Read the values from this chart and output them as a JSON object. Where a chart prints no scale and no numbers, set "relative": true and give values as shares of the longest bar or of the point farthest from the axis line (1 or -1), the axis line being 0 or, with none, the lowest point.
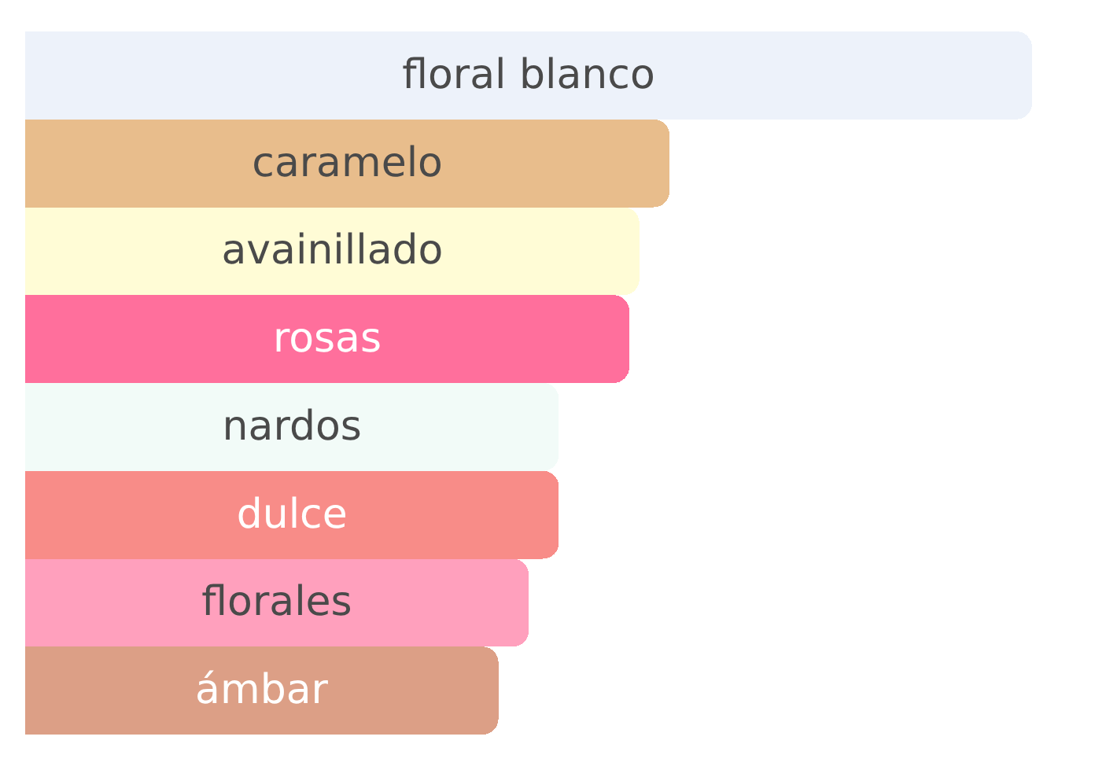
{
  "chart_data": {
    "type": "bar",
    "orientation": "horizontal",
    "relative": true,
    "tick_labels": false,
    "categories": [
      "floral blanco",
      "caramelo",
      "avainillado",
      "rosas",
      "nardos",
      "dulce",
      "florales",
      "ámbar"
    ],
    "values": [
      1,
      0.64,
      0.61,
      0.6,
      0.53,
      0.53,
      0.5,
      0.47
    ],
    "colors": [
      "#edf2fa",
      "#e8bd8c",
      "#fffcd6",
      "#ff6f9c",
      "#f2fbf8",
      "#f88c88",
      "#ffa0bd",
      "#dc9f86"
    ]
  }
}
